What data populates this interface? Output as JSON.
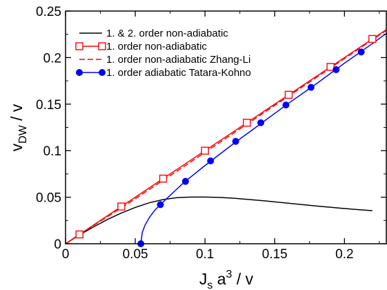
{
  "chart_data": {
    "type": "line",
    "xlabel": {
      "main": "J",
      "sub": "s",
      "mid": " a",
      "sup": "3",
      "tail": " / v"
    },
    "ylabel": {
      "main": "v",
      "sub": "DW",
      "tail": " / v"
    },
    "xlim": [
      0,
      0.23
    ],
    "ylim": [
      0,
      0.25
    ],
    "xticks": [
      {
        "value": 0,
        "label": "0"
      },
      {
        "value": 0.05,
        "label": "0.05"
      },
      {
        "value": 0.1,
        "label": "0.1"
      },
      {
        "value": 0.15,
        "label": "0.15"
      },
      {
        "value": 0.2,
        "label": "0.2"
      }
    ],
    "yticks": [
      {
        "value": 0,
        "label": "0"
      },
      {
        "value": 0.05,
        "label": "0.05"
      },
      {
        "value": 0.1,
        "label": "0.1"
      },
      {
        "value": 0.15,
        "label": "0.15"
      },
      {
        "value": 0.2,
        "label": "0.2"
      },
      {
        "value": 0.25,
        "label": "0.25"
      }
    ],
    "grid": false,
    "legend_position": "top-left",
    "series": [
      {
        "name": "1. & 2. order non-adiabatic",
        "color": "#000000",
        "line": "solid",
        "marker": "none",
        "x": [
          0,
          0.01,
          0.02,
          0.03,
          0.04,
          0.05,
          0.06,
          0.07,
          0.08,
          0.09,
          0.1,
          0.11,
          0.12,
          0.14,
          0.16,
          0.18,
          0.2,
          0.22
        ],
        "y": [
          0,
          0.0095,
          0.018,
          0.026,
          0.033,
          0.039,
          0.044,
          0.0475,
          0.0495,
          0.0502,
          0.0502,
          0.0498,
          0.049,
          0.0465,
          0.0435,
          0.0405,
          0.0378,
          0.0355
        ]
      },
      {
        "name": "1. order non-adiabatic",
        "color": "#ff0000",
        "line": "solid",
        "marker": "open-square",
        "x": [
          0,
          0.23
        ],
        "y": [
          0,
          0.23
        ],
        "marker_x": [
          0.01,
          0.04,
          0.07,
          0.1,
          0.13,
          0.16,
          0.19,
          0.22
        ],
        "marker_y": [
          0.01,
          0.04,
          0.07,
          0.1,
          0.13,
          0.16,
          0.19,
          0.22
        ]
      },
      {
        "name": "1. order non-adiabatic Zhang-Li",
        "color": "#ff0000",
        "line": "dashed",
        "marker": "none",
        "x": [
          0,
          0.01,
          0.02,
          0.03,
          0.04,
          0.05,
          0.06,
          0.07,
          0.08,
          0.1,
          0.23
        ],
        "y": [
          0,
          0.0098,
          0.0195,
          0.029,
          0.0385,
          0.0483,
          0.0582,
          0.0682,
          0.0781,
          0.0982,
          0.2292
        ]
      },
      {
        "name": "1. order adiabatic Tatara-Kohno",
        "color": "#0000ff",
        "line": "solid",
        "marker": "filled-circle",
        "x": [
          0.054,
          0.055,
          0.057,
          0.06,
          0.064,
          0.068,
          0.075,
          0.085,
          0.1,
          0.12,
          0.14,
          0.16,
          0.18,
          0.2,
          0.22,
          0.23
        ],
        "y": [
          0,
          0.012,
          0.02,
          0.028,
          0.036,
          0.042,
          0.052,
          0.066,
          0.084,
          0.107,
          0.129,
          0.151,
          0.172,
          0.194,
          0.215,
          0.226
        ],
        "marker_x": [
          0.054,
          0.068,
          0.086,
          0.104,
          0.122,
          0.14,
          0.158,
          0.176,
          0.194,
          0.212
        ],
        "marker_y": [
          0,
          0.042,
          0.067,
          0.089,
          0.11,
          0.13,
          0.149,
          0.168,
          0.187,
          0.206
        ]
      }
    ]
  }
}
